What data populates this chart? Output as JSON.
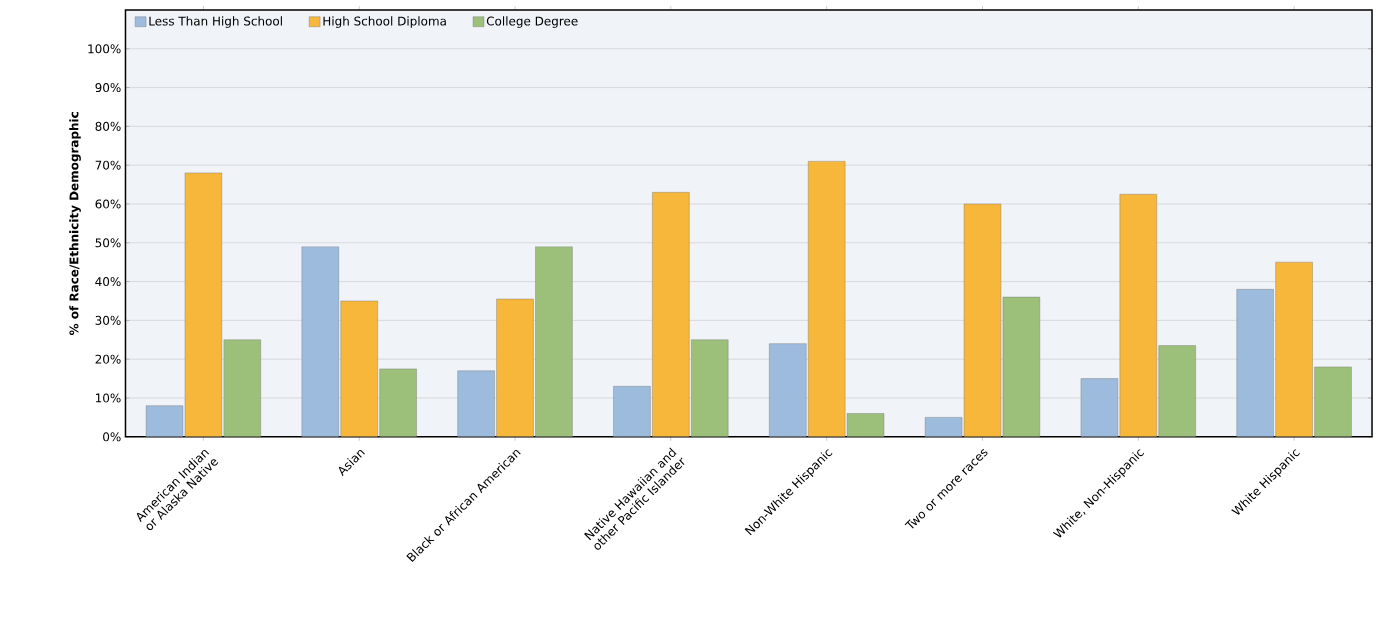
{
  "chart_data": {
    "type": "bar",
    "ylabel": "% of Race/Ethnicity Demographic",
    "categories": [
      "American Indian or Alaska Native",
      "Asian",
      "Black or African American",
      "Native Hawaiian and other Pacific Islander",
      "Non-White Hispanic",
      "Two or more races",
      "White, Non-Hispanic",
      "White Hispanic"
    ],
    "series": [
      {
        "name": "Less Than High School",
        "color": "#9dbbdc",
        "values": [
          8,
          49,
          17,
          13,
          24,
          5,
          15,
          38
        ]
      },
      {
        "name": "High School Diploma",
        "color": "#f7b73a",
        "values": [
          68,
          35,
          35.5,
          63,
          71,
          60,
          62.5,
          45
        ]
      },
      {
        "name": "College Degree",
        "color": "#9cc07a",
        "values": [
          25,
          17.5,
          49,
          25,
          6,
          36,
          23.5,
          18
        ]
      }
    ],
    "ylim": [
      0,
      110
    ],
    "yticks": [
      {
        "value": 0,
        "label": "0%"
      },
      {
        "value": 10,
        "label": "10%"
      },
      {
        "value": 20,
        "label": "20%"
      },
      {
        "value": 30,
        "label": "30%"
      },
      {
        "value": 40,
        "label": "40%"
      },
      {
        "value": 50,
        "label": "50%"
      },
      {
        "value": 60,
        "label": "60%"
      },
      {
        "value": 70,
        "label": "70%"
      },
      {
        "value": 80,
        "label": "80%"
      },
      {
        "value": 90,
        "label": "90%"
      },
      {
        "value": 100,
        "label": "100%"
      }
    ],
    "grid": "y",
    "legend": "top left"
  }
}
